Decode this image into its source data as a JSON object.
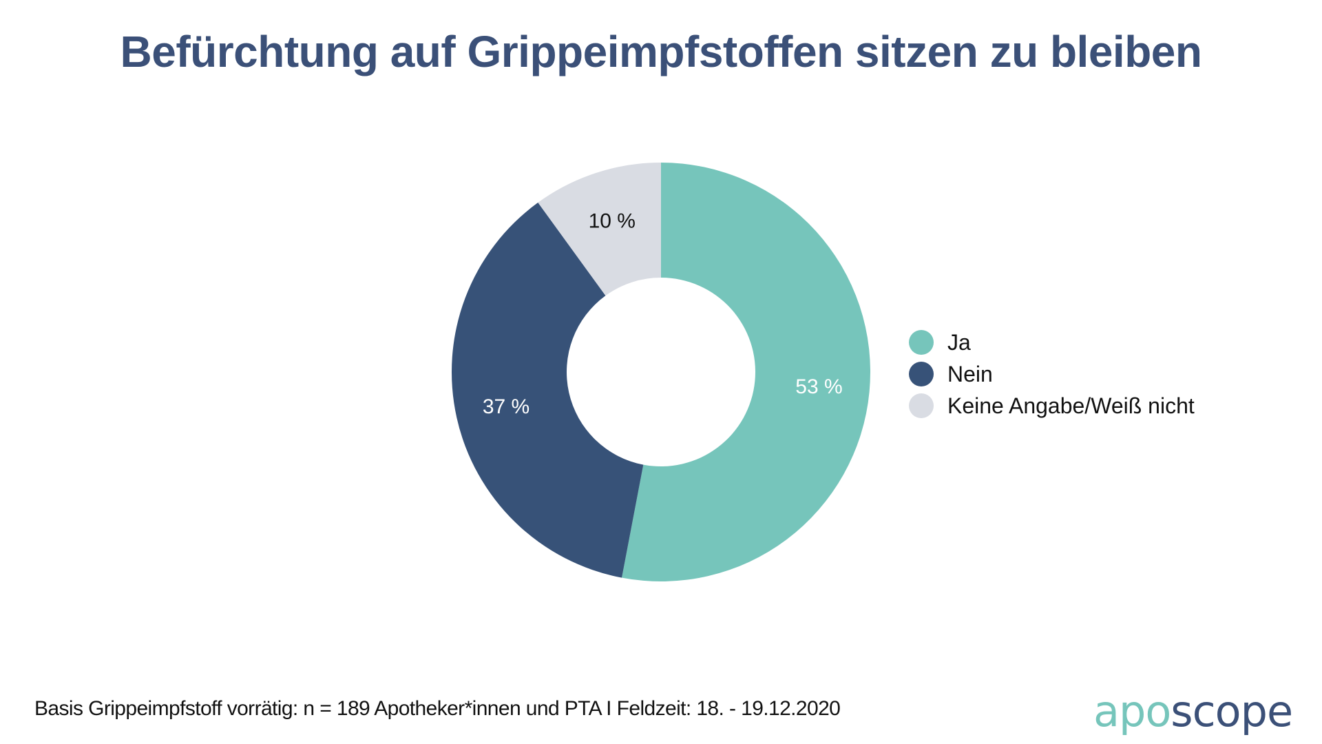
{
  "title": "Befürchtung auf Grippeimpfstoffen sitzen zu bleiben",
  "colors": {
    "title": "#3B5078",
    "ja": "#76C5BB",
    "nein": "#375278",
    "keine_angabe": "#D9DCE3",
    "label_dark": "#111111",
    "label_light": "#FFFFFF"
  },
  "chart_data": {
    "type": "pie",
    "variant": "donut",
    "title": "Befürchtung auf Grippeimpfstoffen sitzen zu bleiben",
    "categories": [
      "Ja",
      "Nein",
      "Keine Angabe/Weiß nicht"
    ],
    "values": [
      53,
      37,
      10
    ],
    "unit": "%",
    "value_labels": [
      "53 %",
      "37 %",
      "10 %"
    ],
    "colors": [
      "#76C5BB",
      "#375278",
      "#D9DCE3"
    ],
    "label_colors": [
      "#FFFFFF",
      "#FFFFFF",
      "#111111"
    ],
    "start": "top",
    "direction": "clockwise",
    "legend": {
      "position": "right",
      "entries": [
        "Ja",
        "Nein",
        "Keine Angabe/Weiß nicht"
      ]
    }
  },
  "legend": [
    {
      "label": "Ja",
      "color": "#76C5BB"
    },
    {
      "label": "Nein",
      "color": "#375278"
    },
    {
      "label": "Keine Angabe/Weiß nicht",
      "color": "#D9DCE3"
    }
  ],
  "footnote": "Basis Grippeimpfstoff vorrätig: n = 189 Apotheker*innen und PTA I Feldzeit: 18. - 19.12.2020",
  "logo": {
    "part_a": "apo",
    "part_b": "scope"
  }
}
